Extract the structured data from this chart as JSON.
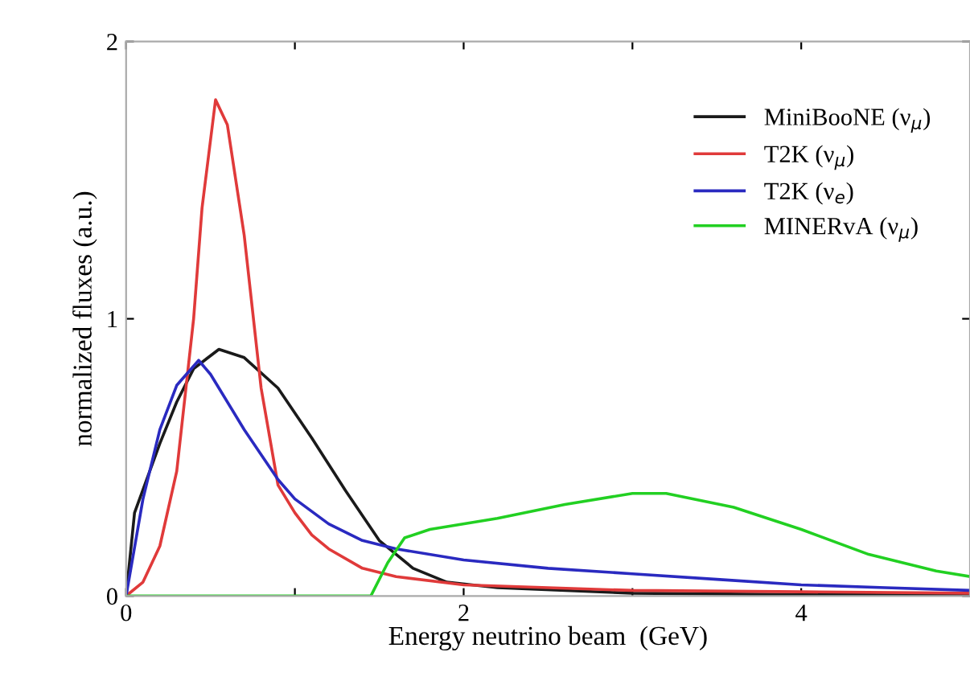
{
  "chart_data": {
    "type": "line",
    "xlabel": "Energy neutrino beam  (GeV)",
    "ylabel": "normalized fluxes (a.u.)",
    "xlim": [
      0,
      5
    ],
    "ylim": [
      0,
      2
    ],
    "xticks": [
      0,
      {
        "value": 1,
        "label": null
      },
      2,
      {
        "value": 3,
        "label": null
      },
      4
    ],
    "yticks": [
      0,
      1,
      2
    ],
    "grid": false,
    "legend": "top right",
    "marker": "none",
    "line_style": "solid",
    "series": [
      {
        "name": "MiniBooNE (ν$_{μ}$)",
        "color": "#1a1a1a",
        "x": [
          0,
          0.05,
          0.2,
          0.3,
          0.4,
          0.55,
          0.7,
          0.9,
          1.1,
          1.3,
          1.5,
          1.7,
          1.9,
          2.2,
          3,
          4,
          5
        ],
        "values": [
          0,
          0.3,
          0.55,
          0.7,
          0.82,
          0.89,
          0.86,
          0.75,
          0.57,
          0.38,
          0.2,
          0.1,
          0.05,
          0.03,
          0.01,
          0.005,
          0.003
        ]
      },
      {
        "name": "T2K (ν$_{μ}$)",
        "color": "#e03a3a",
        "x": [
          0,
          0.1,
          0.2,
          0.3,
          0.4,
          0.45,
          0.53,
          0.6,
          0.7,
          0.8,
          0.9,
          1.0,
          1.1,
          1.2,
          1.4,
          1.6,
          2.0,
          3,
          4,
          5
        ],
        "values": [
          0,
          0.05,
          0.18,
          0.45,
          1.0,
          1.4,
          1.79,
          1.7,
          1.3,
          0.75,
          0.4,
          0.3,
          0.22,
          0.17,
          0.1,
          0.07,
          0.04,
          0.02,
          0.015,
          0.01
        ]
      },
      {
        "name": "T2K (ν$_{e}$)",
        "color": "#2a2ac0",
        "x": [
          0,
          0.1,
          0.2,
          0.3,
          0.43,
          0.5,
          0.7,
          0.9,
          1.0,
          1.2,
          1.4,
          1.6,
          2,
          2.5,
          3,
          3.5,
          4,
          4.5,
          5
        ],
        "values": [
          0,
          0.35,
          0.6,
          0.76,
          0.85,
          0.8,
          0.6,
          0.42,
          0.35,
          0.26,
          0.2,
          0.17,
          0.13,
          0.1,
          0.08,
          0.06,
          0.04,
          0.03,
          0.02
        ]
      },
      {
        "name": "MINERvA (ν$_{μ}$)",
        "color": "#22d022",
        "x": [
          0,
          1.45,
          1.55,
          1.65,
          1.8,
          2.2,
          2.6,
          3.0,
          3.2,
          3.6,
          4.0,
          4.4,
          4.8,
          5.0
        ],
        "values": [
          0,
          0,
          0.12,
          0.21,
          0.24,
          0.28,
          0.33,
          0.37,
          0.37,
          0.32,
          0.24,
          0.15,
          0.09,
          0.07
        ]
      }
    ]
  }
}
